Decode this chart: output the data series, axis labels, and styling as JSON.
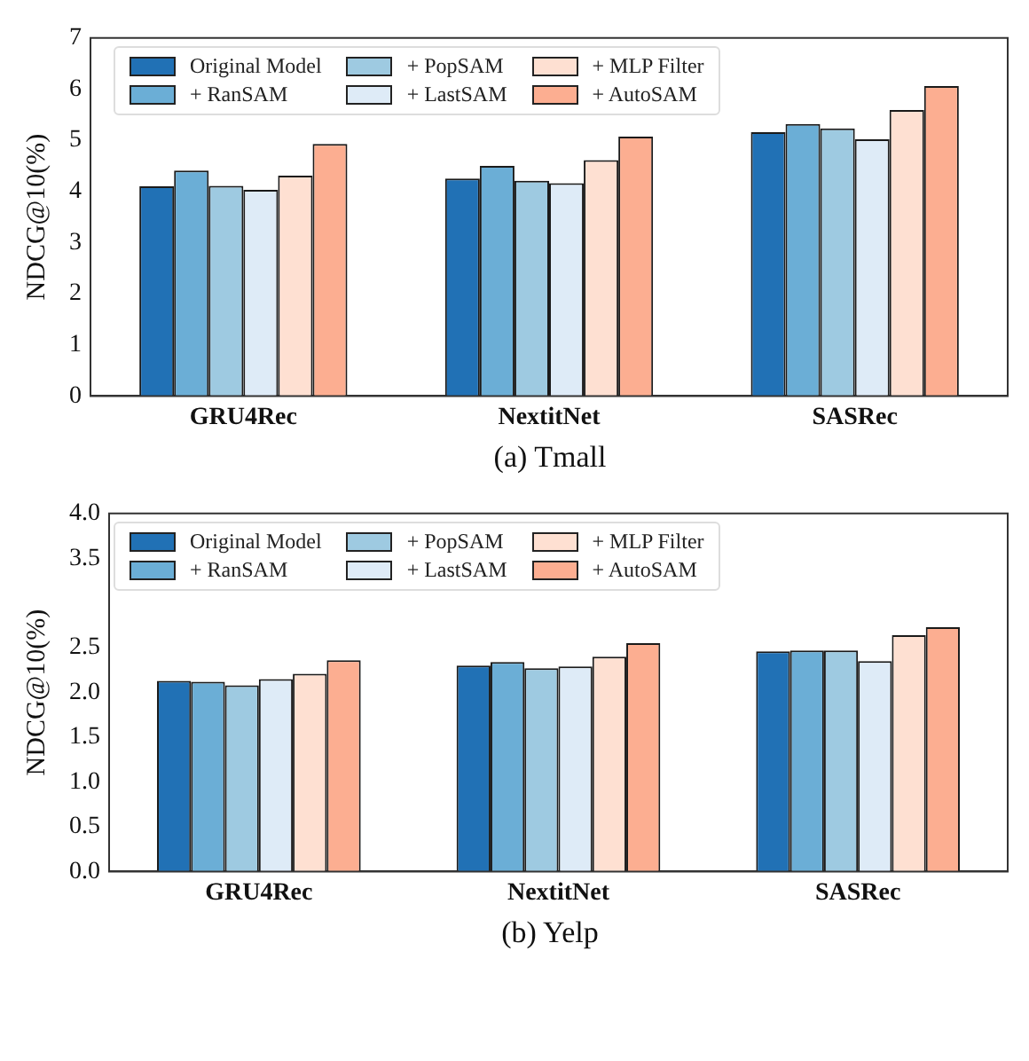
{
  "chart_data": [
    {
      "type": "bar",
      "ylabel": "NDCG@10(%)",
      "categories": [
        "GRU4Rec",
        "NextitNet",
        "SASRec"
      ],
      "ylim": [
        0,
        7
      ],
      "yticks": [
        0,
        1,
        2,
        3,
        4,
        5,
        6,
        7
      ],
      "grid": false,
      "legend": "top left",
      "annotations": [
        "(a)  Tmall"
      ],
      "series": [
        {
          "name": "Original Model",
          "color": "#2171b5",
          "values": [
            4.1,
            4.25,
            5.16
          ]
        },
        {
          "name": "+ RanSAM",
          "color": "#6baed6",
          "values": [
            4.41,
            4.5,
            5.32
          ]
        },
        {
          "name": "+ PopSAM",
          "color": "#9ecae1",
          "values": [
            4.11,
            4.21,
            5.23
          ]
        },
        {
          "name": "+ LastSAM",
          "color": "#deebf7",
          "values": [
            4.03,
            4.16,
            5.02
          ]
        },
        {
          "name": "+ MLP Filter",
          "color": "#fee0d2",
          "values": [
            4.31,
            4.61,
            5.59
          ]
        },
        {
          "name": "+ AutoSAM",
          "color": "#fcae91",
          "values": [
            4.93,
            5.07,
            6.06
          ]
        }
      ]
    },
    {
      "type": "bar",
      "ylabel": "NDCG@10(%)",
      "categories": [
        "GRU4Rec",
        "NextitNet",
        "SASRec"
      ],
      "ylim": [
        0,
        4
      ],
      "yticks": [
        {
          "value": 0,
          "label": "0.0"
        },
        0.5,
        {
          "value": 1,
          "label": "1.0"
        },
        1.5,
        {
          "value": 2,
          "label": "2.0"
        },
        2.5,
        3.5,
        {
          "value": 4,
          "label": "4.0"
        }
      ],
      "grid": false,
      "legend": "top left",
      "annotations": [
        "(b)  Yelp"
      ],
      "series": [
        {
          "name": "Original Model",
          "color": "#2171b5",
          "values": [
            2.13,
            2.3,
            2.46
          ]
        },
        {
          "name": "+ RanSAM",
          "color": "#6baed6",
          "values": [
            2.12,
            2.34,
            2.47
          ]
        },
        {
          "name": "+ PopSAM",
          "color": "#9ecae1",
          "values": [
            2.08,
            2.27,
            2.47
          ]
        },
        {
          "name": "+ LastSAM",
          "color": "#deebf7",
          "values": [
            2.15,
            2.29,
            2.35
          ]
        },
        {
          "name": "+ MLP Filter",
          "color": "#fee0d2",
          "values": [
            2.21,
            2.4,
            2.64
          ]
        },
        {
          "name": "+ AutoSAM",
          "color": "#fcae91",
          "values": [
            2.36,
            2.55,
            2.73
          ]
        }
      ]
    }
  ]
}
